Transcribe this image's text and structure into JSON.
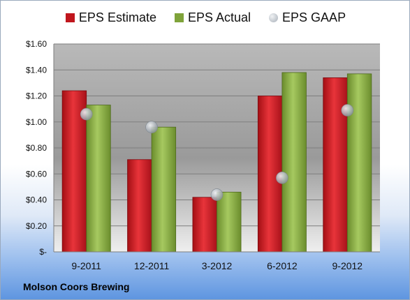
{
  "chart_data": {
    "type": "bar",
    "categories": [
      "9-2011",
      "12-2011",
      "3-2012",
      "6-2012",
      "9-2012"
    ],
    "series": [
      {
        "name": "EPS Estimate",
        "values": [
          1.24,
          0.71,
          0.42,
          1.2,
          1.34
        ],
        "color": "#c0161d",
        "kind": "bar"
      },
      {
        "name": "EPS Actual",
        "values": [
          1.13,
          0.96,
          0.46,
          1.38,
          1.37
        ],
        "color": "#7fa33a",
        "kind": "bar"
      },
      {
        "name": "EPS GAAP",
        "values": [
          1.06,
          0.96,
          0.44,
          0.57,
          1.09
        ],
        "color": "#a7afb8",
        "kind": "scatter"
      }
    ],
    "yticks": [
      "$-",
      "$0.20",
      "$0.40",
      "$0.60",
      "$0.80",
      "$1.00",
      "$1.20",
      "$1.40",
      "$1.60"
    ],
    "ylim": [
      0,
      1.6
    ],
    "grid": true,
    "legend_position": "top",
    "title": "",
    "xlabel": "",
    "ylabel": ""
  },
  "footer": {
    "company": "Molson Coors Brewing"
  }
}
